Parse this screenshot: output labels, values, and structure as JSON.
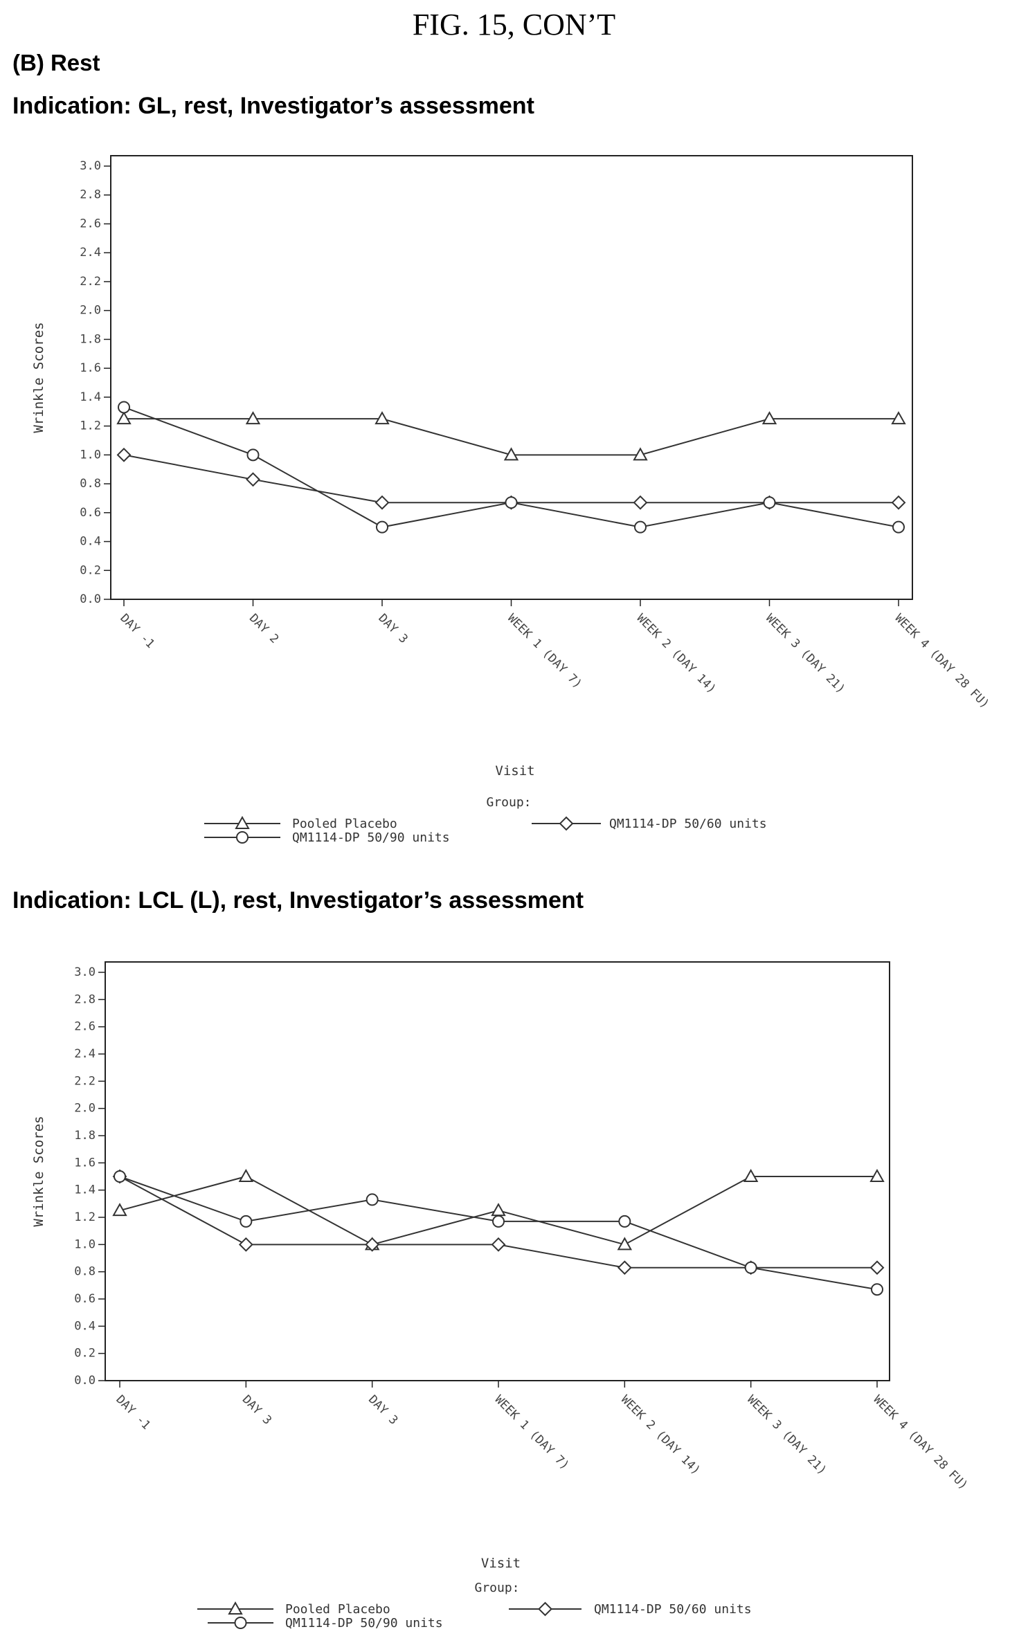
{
  "figure_title": "FIG. 15, CON’T",
  "section_label": "(B) Rest",
  "charts": [
    {
      "indication_title": "Indication: GL, rest, Investigator’s assessment",
      "legend_group_label": "Group:"
    },
    {
      "indication_title": "Indication: LCL (L), rest, Investigator’s assessment",
      "legend_group_label": "Group:"
    }
  ],
  "chart_data": [
    {
      "type": "line",
      "title": "Indication: GL, rest, Investigator’s assessment",
      "xlabel": "Visit",
      "ylabel": "Wrinkle Scores",
      "ylim": [
        0.0,
        3.0
      ],
      "yticks": [
        "0.0",
        "0.2",
        "0.4",
        "0.6",
        "0.8",
        "1.0",
        "1.2",
        "1.4",
        "1.6",
        "1.8",
        "2.0",
        "2.2",
        "2.4",
        "2.6",
        "2.8",
        "3.0"
      ],
      "categories": [
        "DAY -1",
        "DAY 2",
        "DAY 3",
        "WEEK 1 (DAY 7)",
        "WEEK 2 (DAY 14)",
        "WEEK 3 (DAY 21)",
        "WEEK 4 (DAY 28 FU)"
      ],
      "legend_title": "Group:",
      "legend_position": "bottom",
      "series": [
        {
          "name": "Pooled Placebo",
          "marker": "triangle",
          "values": [
            1.25,
            1.25,
            1.25,
            1.0,
            1.0,
            1.25,
            1.25
          ]
        },
        {
          "name": "QM1114-DP 50/60 units",
          "marker": "diamond",
          "values": [
            1.0,
            0.83,
            0.67,
            0.67,
            0.67,
            0.67,
            0.67
          ]
        },
        {
          "name": "QM1114-DP 50/90 units",
          "marker": "circle",
          "values": [
            1.33,
            1.0,
            0.5,
            0.67,
            0.5,
            0.67,
            0.5
          ]
        }
      ]
    },
    {
      "type": "line",
      "title": "Indication: LCL (L), rest, Investigator’s assessment",
      "xlabel": "Visit",
      "ylabel": "Wrinkle Scores",
      "ylim": [
        0.0,
        3.0
      ],
      "yticks": [
        "0.0",
        "0.2",
        "0.4",
        "0.6",
        "0.8",
        "1.0",
        "1.2",
        "1.4",
        "1.6",
        "1.8",
        "2.0",
        "2.2",
        "2.4",
        "2.6",
        "2.8",
        "3.0"
      ],
      "categories": [
        "DAY -1",
        "DAY 3",
        "DAY 3",
        "WEEK 1 (DAY 7)",
        "WEEK 2 (DAY 14)",
        "WEEK 3 (DAY 21)",
        "WEEK 4 (DAY 28 FU)"
      ],
      "legend_title": "Group:",
      "legend_position": "bottom",
      "series": [
        {
          "name": "Pooled Placebo",
          "marker": "triangle",
          "values": [
            1.25,
            1.5,
            1.0,
            1.25,
            1.0,
            1.5,
            1.5
          ]
        },
        {
          "name": "QM1114-DP 50/60 units",
          "marker": "diamond",
          "values": [
            1.5,
            1.0,
            1.0,
            1.0,
            0.83,
            0.83,
            0.83
          ]
        },
        {
          "name": "QM1114-DP 50/90 units",
          "marker": "circle",
          "values": [
            1.5,
            1.17,
            1.33,
            1.17,
            1.17,
            0.83,
            0.67
          ]
        }
      ]
    }
  ]
}
